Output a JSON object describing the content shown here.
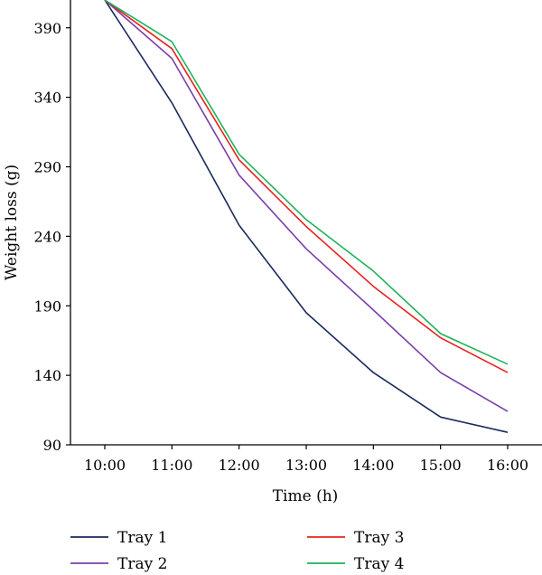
{
  "chart_data": {
    "type": "line",
    "xlabel": "Time (h)",
    "ylabel": "Weight loss (g)",
    "categories": [
      "10:00",
      "11:00",
      "12:00",
      "13:00",
      "14:00",
      "15:00",
      "16:00"
    ],
    "ylim": [
      90,
      410
    ],
    "yticks": [
      90,
      140,
      190,
      240,
      290,
      340,
      390
    ],
    "grid": false,
    "legend": "bottom",
    "series": [
      {
        "name": "Tray 1",
        "color": "#1a2a5e",
        "values": [
          410,
          336,
          248,
          185,
          142,
          110,
          99
        ]
      },
      {
        "name": "Tray 2",
        "color": "#7a3fa8",
        "values": [
          410,
          368,
          284,
          231,
          187,
          142,
          114
        ]
      },
      {
        "name": "Tray 3",
        "color": "#e8211f",
        "values": [
          410,
          375,
          295,
          247,
          204,
          167,
          142
        ]
      },
      {
        "name": "Tray 4",
        "color": "#1fb35a",
        "values": [
          410,
          380,
          299,
          252,
          215,
          170,
          148
        ]
      }
    ]
  }
}
